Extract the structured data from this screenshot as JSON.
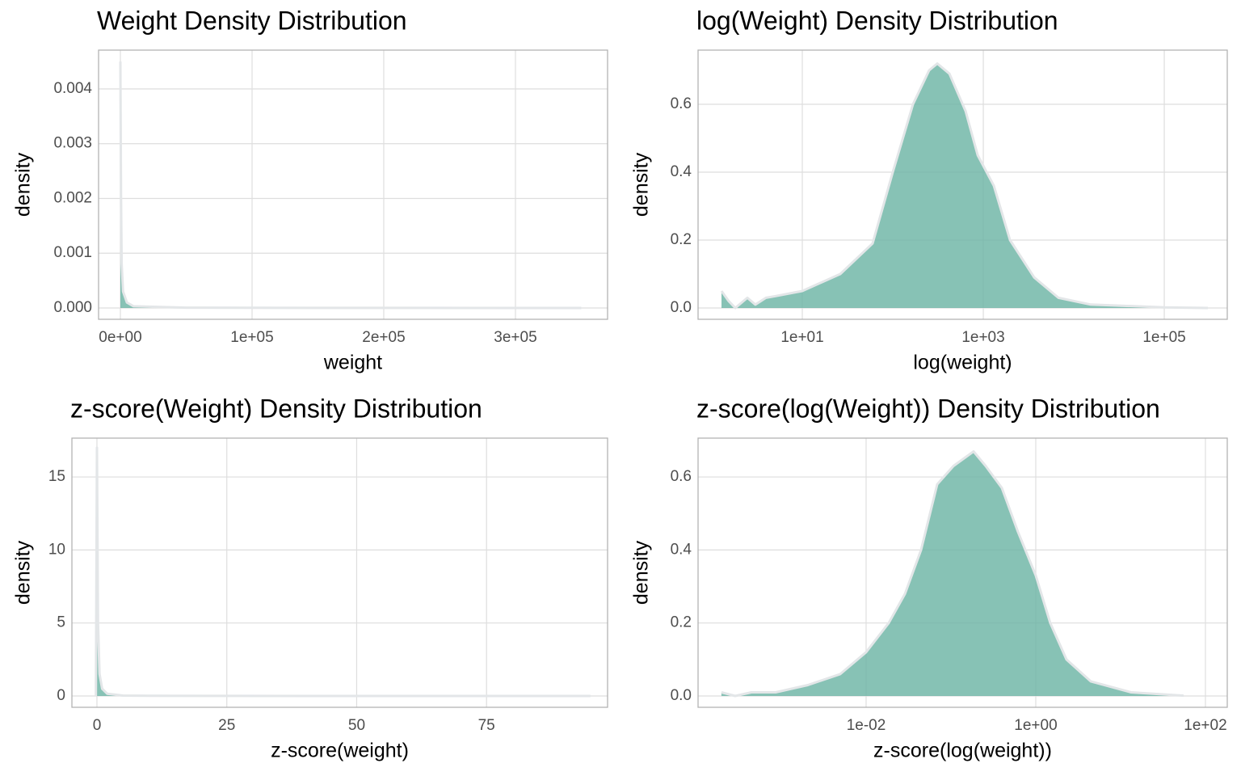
{
  "chart_data": [
    {
      "type": "area",
      "title": "Weight Density Distribution",
      "x_label": "weight",
      "y_label": "density",
      "x": [
        0,
        500,
        1000,
        2000,
        5000,
        10000,
        50000,
        100000,
        200000,
        350000
      ],
      "values": [
        0.0045,
        0.002,
        0.0008,
        0.0003,
        0.0001,
        3e-05,
        5e-06,
        2e-06,
        1e-06,
        0
      ],
      "color": "#69b3a2",
      "grid": true,
      "xlim": [
        -16564,
        369939
      ],
      "ylim": [
        -0.000207,
        0.004708
      ],
      "xticks": [
        {
          "value": 0,
          "label": "0e+00"
        },
        {
          "value": 100000,
          "label": "1e+05"
        },
        {
          "value": 200000,
          "label": "2e+05"
        },
        {
          "value": 300000,
          "label": "3e+05"
        }
      ],
      "yticks": [
        {
          "value": 0,
          "label": "0.000"
        },
        0.001,
        0.002,
        0.003,
        0.004
      ]
    },
    {
      "type": "area",
      "title": "log(Weight) Density Distribution",
      "x_label": "log(weight)",
      "y_label": "density",
      "x": [
        1.28,
        1.54,
        1.82,
        2.47,
        3.03,
        3.97,
        5.07,
        10,
        26.3,
        59.8,
        100,
        167,
        252,
        310,
        422,
        637,
        867,
        1307,
        1972,
        3652,
        6761,
        15400,
        100000,
        303000
      ],
      "values": [
        0.05,
        0.02,
        0.0,
        0.03,
        0.01,
        0.03,
        0.035,
        0.05,
        0.1,
        0.19,
        0.4,
        0.6,
        0.7,
        0.72,
        0.69,
        0.58,
        0.45,
        0.36,
        0.2,
        0.09,
        0.03,
        0.01,
        0.002,
        0
      ],
      "color": "#69b3a2",
      "grid": true,
      "x_log": true,
      "xlim": [
        0.705,
        496600
      ],
      "ylim": [
        -0.0333,
        0.7595
      ],
      "xticks": [
        {
          "value": 10,
          "label": "1e+01"
        },
        {
          "value": 1000,
          "label": "1e+03"
        },
        {
          "value": 100000,
          "label": "1e+05"
        }
      ],
      "yticks": [
        {
          "value": 0,
          "label": "0.0"
        },
        0.2,
        0.4,
        0.6
      ]
    },
    {
      "type": "area",
      "title": "z-score(Weight) Density Distribution",
      "x_label": "z-score(weight)",
      "y_label": "density",
      "x": [
        -0.2,
        0,
        0.2,
        0.5,
        1,
        2,
        5,
        10,
        25,
        50,
        75,
        95
      ],
      "values": [
        0,
        17,
        5,
        1.5,
        0.5,
        0.15,
        0.03,
        0.01,
        0.003,
        0.001,
        0.001,
        0
      ],
      "color": "#69b3a2",
      "grid": true,
      "xlim": [
        -4.82,
        98.3
      ],
      "ylim": [
        -0.775,
        17.66
      ],
      "xticks": [
        0,
        25,
        50,
        75
      ],
      "yticks": [
        0,
        5,
        10,
        15
      ]
    },
    {
      "type": "area",
      "title": "z-score(log(Weight)) Density Distribution",
      "x_label": "z-score(log(weight))",
      "y_label": "density",
      "x": [
        0.000197,
        0.000286,
        0.000444,
        0.000857,
        0.00206,
        0.00496,
        0.01,
        0.0185,
        0.0287,
        0.0444,
        0.0689,
        0.107,
        0.185,
        0.257,
        0.398,
        0.616,
        1,
        1.48,
        2.3,
        4.44,
        13.3,
        55.3
      ],
      "values": [
        0.01,
        0.0,
        0.01,
        0.01,
        0.03,
        0.06,
        0.12,
        0.2,
        0.28,
        0.4,
        0.58,
        0.63,
        0.67,
        0.63,
        0.57,
        0.45,
        0.33,
        0.2,
        0.1,
        0.04,
        0.01,
        0.001
      ],
      "color": "#69b3a2",
      "grid": true,
      "x_log": true,
      "xlim": [
        0.0001045,
        180.8
      ],
      "ylim": [
        -0.031,
        0.7065
      ],
      "xticks": [
        {
          "value": 0.01,
          "label": "1e-02"
        },
        {
          "value": 1,
          "label": "1e+00"
        },
        {
          "value": 100,
          "label": "1e+02"
        }
      ],
      "yticks": [
        {
          "value": 0,
          "label": "0.0"
        },
        0.2,
        0.4,
        0.6
      ]
    }
  ]
}
